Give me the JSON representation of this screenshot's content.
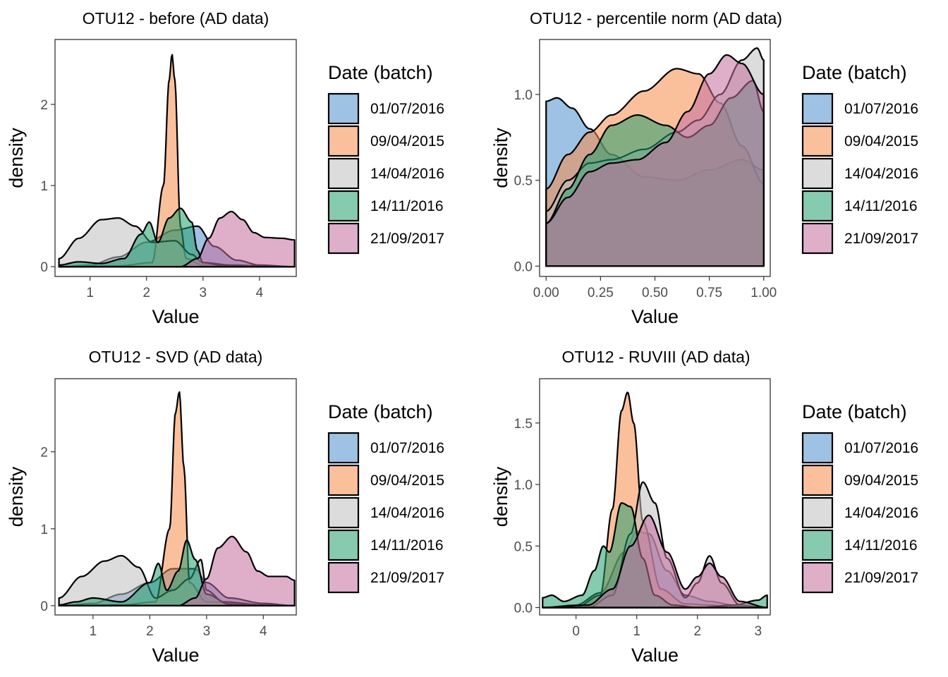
{
  "legend_title": "Date (batch)",
  "series_names": [
    "01/07/2016",
    "09/04/2015",
    "14/04/2016",
    "14/11/2016",
    "21/09/2017"
  ],
  "series_colors": [
    "#4f8fcc",
    "#f58c4a",
    "#bfbfbf",
    "#239e6d",
    "#c46e9f"
  ],
  "chart_data": [
    {
      "type": "area",
      "title": "OTU12 - before (AD data)",
      "xlabel": "Value",
      "ylabel": "density",
      "xlim": [
        0.38,
        4.65
      ],
      "ylim": [
        -0.12,
        2.8
      ],
      "xticks": [
        1,
        2,
        3,
        4
      ],
      "yticks": [
        0,
        1,
        2
      ],
      "legend": "right",
      "grid": false,
      "x_range": [
        0.45,
        4.62
      ],
      "series": [
        {
          "name": "01/07/2016",
          "x": [
            0.45,
            1.0,
            1.5,
            2.0,
            2.5,
            2.9,
            3.2,
            3.6,
            4.0,
            4.62
          ],
          "values": [
            0.0,
            0.02,
            0.12,
            0.3,
            0.45,
            0.5,
            0.25,
            0.08,
            0.02,
            0.0
          ]
        },
        {
          "name": "09/04/2015",
          "x": [
            0.45,
            1.5,
            2.1,
            2.3,
            2.4,
            2.45,
            2.5,
            2.6,
            2.7,
            3.0,
            4.0,
            4.62
          ],
          "values": [
            0.0,
            0.01,
            0.05,
            1.0,
            2.3,
            2.62,
            2.3,
            0.5,
            0.1,
            0.02,
            0.01,
            0.0
          ]
        },
        {
          "name": "14/04/2016",
          "x": [
            0.45,
            0.8,
            1.2,
            1.5,
            1.8,
            2.1,
            2.5,
            2.8,
            3.0,
            3.5,
            4.0,
            4.62
          ],
          "values": [
            0.1,
            0.35,
            0.58,
            0.6,
            0.5,
            0.3,
            0.32,
            0.15,
            0.05,
            0.02,
            0.01,
            0.0
          ]
        },
        {
          "name": "14/11/2016",
          "x": [
            0.45,
            0.8,
            1.2,
            1.6,
            1.9,
            2.05,
            2.2,
            2.4,
            2.6,
            2.8,
            2.9,
            3.0,
            3.4,
            4.0,
            4.62
          ],
          "values": [
            0.02,
            0.06,
            0.04,
            0.1,
            0.4,
            0.55,
            0.3,
            0.6,
            0.72,
            0.55,
            0.2,
            0.05,
            0.01,
            0.0,
            0.0
          ]
        },
        {
          "name": "21/09/2017",
          "x": [
            0.45,
            2.6,
            2.9,
            3.1,
            3.3,
            3.5,
            3.7,
            3.9,
            4.1,
            4.4,
            4.62
          ],
          "values": [
            0.0,
            0.0,
            0.1,
            0.35,
            0.6,
            0.68,
            0.58,
            0.42,
            0.36,
            0.35,
            0.33
          ]
        }
      ]
    },
    {
      "type": "area",
      "title": "OTU12 - percentile norm (AD data)",
      "xlabel": "Value",
      "ylabel": "density",
      "xlim": [
        -0.03,
        1.03
      ],
      "ylim": [
        -0.06,
        1.32
      ],
      "xticks": [
        0.0,
        0.25,
        0.5,
        0.75,
        1.0
      ],
      "xtick_labels": [
        "0.00",
        "0.25",
        "0.50",
        "0.75",
        "1.00"
      ],
      "yticks": [
        0.0,
        0.5,
        1.0
      ],
      "ytick_labels": [
        "0.0",
        "0.5",
        "1.0"
      ],
      "legend": "right",
      "grid": false,
      "x_range": [
        0.0,
        1.0
      ],
      "series": [
        {
          "name": "01/07/2016",
          "x": [
            0.0,
            0.05,
            0.12,
            0.2,
            0.3,
            0.45,
            0.6,
            0.75,
            0.9,
            1.0
          ],
          "values": [
            0.96,
            0.98,
            0.92,
            0.8,
            0.65,
            0.52,
            0.5,
            0.56,
            0.62,
            0.56
          ]
        },
        {
          "name": "09/04/2015",
          "x": [
            0.0,
            0.1,
            0.2,
            0.3,
            0.45,
            0.6,
            0.7,
            0.8,
            0.9,
            1.0
          ],
          "values": [
            0.45,
            0.65,
            0.78,
            0.88,
            1.02,
            1.15,
            1.12,
            0.95,
            0.7,
            0.48
          ]
        },
        {
          "name": "14/04/2016",
          "x": [
            0.0,
            0.1,
            0.2,
            0.3,
            0.45,
            0.6,
            0.7,
            0.8,
            0.9,
            0.97,
            1.0
          ],
          "values": [
            0.32,
            0.5,
            0.6,
            0.62,
            0.68,
            0.78,
            0.85,
            1.0,
            1.2,
            1.27,
            1.2
          ]
        },
        {
          "name": "14/11/2016",
          "x": [
            0.0,
            0.1,
            0.2,
            0.3,
            0.42,
            0.55,
            0.65,
            0.75,
            0.85,
            0.95,
            1.0
          ],
          "values": [
            0.25,
            0.45,
            0.65,
            0.82,
            0.88,
            0.82,
            0.75,
            0.82,
            0.98,
            1.08,
            0.9
          ]
        },
        {
          "name": "21/09/2017",
          "x": [
            0.0,
            0.1,
            0.2,
            0.3,
            0.42,
            0.55,
            0.65,
            0.75,
            0.83,
            0.9,
            1.0
          ],
          "values": [
            0.25,
            0.4,
            0.55,
            0.6,
            0.62,
            0.72,
            0.9,
            1.12,
            1.23,
            1.18,
            1.0
          ]
        }
      ]
    },
    {
      "type": "area",
      "title": "OTU12 - SVD (AD data)",
      "xlabel": "Value",
      "ylabel": "density",
      "xlim": [
        0.33,
        4.58
      ],
      "ylim": [
        -0.12,
        2.95
      ],
      "xticks": [
        1,
        2,
        3,
        4
      ],
      "yticks": [
        0,
        1,
        2
      ],
      "legend": "right",
      "grid": false,
      "x_range": [
        0.4,
        4.55
      ],
      "series": [
        {
          "name": "01/07/2016",
          "x": [
            0.4,
            1.0,
            1.5,
            2.0,
            2.4,
            2.8,
            3.0,
            3.4,
            4.0,
            4.55
          ],
          "values": [
            0.0,
            0.03,
            0.15,
            0.3,
            0.48,
            0.48,
            0.3,
            0.1,
            0.03,
            0.0
          ]
        },
        {
          "name": "09/04/2015",
          "x": [
            0.4,
            1.5,
            2.1,
            2.35,
            2.45,
            2.52,
            2.6,
            2.7,
            3.0,
            4.0,
            4.55
          ],
          "values": [
            0.0,
            0.01,
            0.05,
            1.0,
            2.5,
            2.78,
            1.8,
            0.3,
            0.05,
            0.01,
            0.0
          ]
        },
        {
          "name": "14/04/2016",
          "x": [
            0.4,
            0.8,
            1.2,
            1.5,
            1.8,
            2.1,
            2.4,
            2.7,
            2.9,
            3.0,
            3.3,
            4.0,
            4.55
          ],
          "values": [
            0.1,
            0.38,
            0.58,
            0.65,
            0.5,
            0.1,
            0.2,
            0.35,
            0.6,
            0.2,
            0.05,
            0.01,
            0.0
          ]
        },
        {
          "name": "14/11/2016",
          "x": [
            0.4,
            0.7,
            1.0,
            1.5,
            2.0,
            2.15,
            2.3,
            2.5,
            2.65,
            2.8,
            3.0,
            3.4,
            4.0,
            4.55
          ],
          "values": [
            0.01,
            0.05,
            0.1,
            0.05,
            0.3,
            0.55,
            0.2,
            0.45,
            0.85,
            0.6,
            0.15,
            0.02,
            0.0,
            0.0
          ]
        },
        {
          "name": "21/09/2017",
          "x": [
            0.4,
            2.5,
            2.8,
            3.0,
            3.2,
            3.45,
            3.7,
            3.9,
            4.1,
            4.4,
            4.55
          ],
          "values": [
            0.0,
            0.0,
            0.1,
            0.35,
            0.75,
            0.9,
            0.7,
            0.45,
            0.38,
            0.38,
            0.33
          ]
        }
      ]
    },
    {
      "type": "area",
      "title": "OTU12 - RUVIII (AD data)",
      "xlabel": "Value",
      "ylabel": "density",
      "xlim": [
        -0.6,
        3.2
      ],
      "ylim": [
        -0.06,
        1.86
      ],
      "xticks": [
        0,
        1,
        2,
        3
      ],
      "yticks": [
        0.0,
        0.5,
        1.0,
        1.5
      ],
      "ytick_labels": [
        "0.0",
        "0.5",
        "1.0",
        "1.5"
      ],
      "legend": "right",
      "grid": false,
      "x_range": [
        -0.55,
        3.15
      ],
      "series": [
        {
          "name": "01/07/2016",
          "x": [
            -0.55,
            0.0,
            0.4,
            0.8,
            1.0,
            1.2,
            1.5,
            1.8,
            2.2,
            2.6,
            3.15
          ],
          "values": [
            0.0,
            0.02,
            0.12,
            0.45,
            0.62,
            0.6,
            0.3,
            0.1,
            0.05,
            0.02,
            0.0
          ]
        },
        {
          "name": "09/04/2015",
          "x": [
            -0.55,
            0.0,
            0.4,
            0.6,
            0.75,
            0.85,
            0.95,
            1.1,
            1.4,
            1.8,
            2.2,
            2.6,
            3.15
          ],
          "values": [
            0.0,
            0.0,
            0.1,
            0.8,
            1.6,
            1.75,
            1.5,
            0.7,
            0.15,
            0.03,
            0.02,
            0.0,
            0.0
          ]
        },
        {
          "name": "14/04/2016",
          "x": [
            -0.55,
            0.2,
            0.6,
            0.9,
            1.1,
            1.3,
            1.5,
            1.8,
            2.0,
            2.2,
            2.4,
            2.7,
            3.15
          ],
          "values": [
            0.0,
            0.0,
            0.1,
            0.6,
            1.02,
            0.85,
            0.4,
            0.08,
            0.2,
            0.42,
            0.2,
            0.02,
            0.0
          ]
        },
        {
          "name": "14/11/2016",
          "x": [
            -0.55,
            -0.4,
            -0.2,
            0.1,
            0.3,
            0.45,
            0.55,
            0.75,
            0.9,
            1.1,
            1.3,
            1.6,
            2.0,
            2.6,
            3.0,
            3.15
          ],
          "values": [
            0.08,
            0.1,
            0.05,
            0.1,
            0.3,
            0.5,
            0.45,
            0.85,
            0.82,
            0.4,
            0.1,
            0.02,
            0.0,
            0.02,
            0.06,
            0.1
          ]
        },
        {
          "name": "21/09/2017",
          "x": [
            -0.55,
            0.2,
            0.6,
            0.9,
            1.2,
            1.5,
            1.8,
            2.0,
            2.2,
            2.4,
            2.7,
            3.15
          ],
          "values": [
            0.0,
            0.02,
            0.15,
            0.5,
            0.75,
            0.45,
            0.15,
            0.25,
            0.36,
            0.25,
            0.05,
            0.0
          ]
        }
      ]
    }
  ]
}
